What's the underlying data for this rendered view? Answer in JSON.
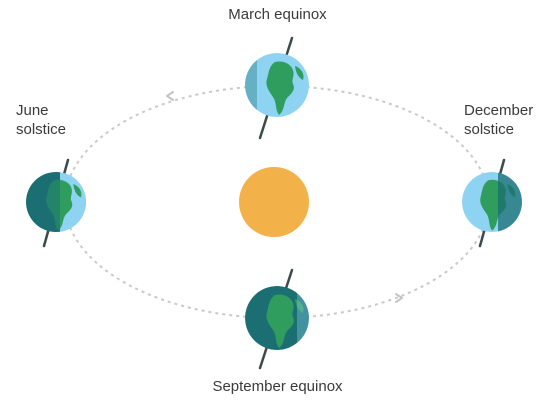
{
  "labels": {
    "march": "March equinox",
    "june": "June\nsolstice",
    "december": "December\nsolstice",
    "september": "September equinox"
  },
  "colors": {
    "orbit": "#c9c9c9",
    "sun": "#f3b14a",
    "ocean_light": "#8fd3f2",
    "ocean_dark": "#1b6f73",
    "land_light": "#2f9d5e",
    "land_dark": "#196a57",
    "axis": "#3d4a4a",
    "text": "#3a3a3a"
  },
  "icons": {
    "sun": "sun-icon",
    "earth": "earth-globe-icon",
    "arrow": "orbit-direction-arrow-icon"
  }
}
